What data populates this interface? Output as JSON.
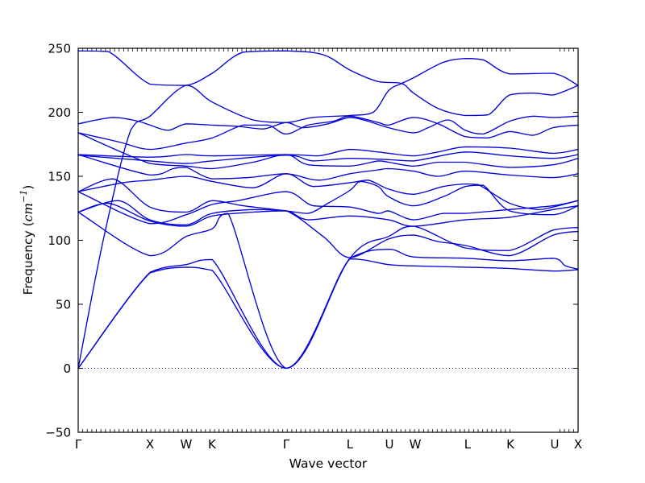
{
  "figure": {
    "background": "#ffffff",
    "line_color": "#0202dd",
    "spine_color": "#000000"
  },
  "chart_data": {
    "type": "line",
    "title": "",
    "xlabel": "Wave vector",
    "ylabel_text": "Frequency (cm^-1)",
    "ylabel_parts": {
      "prefix": "Frequency (",
      "math": "cm",
      "sup": "−1",
      "suffix": ")"
    },
    "ylim": [
      -50,
      250
    ],
    "grid": false,
    "legend": "none",
    "zero_line": {
      "value": 0,
      "style": "dotted",
      "color": "#0202dd"
    },
    "yticks": {
      "values": [
        250,
        200,
        150,
        100,
        50,
        0,
        -50
      ],
      "labels": [
        "250",
        "200",
        "150",
        "100",
        "50",
        "0",
        "−50"
      ]
    },
    "x_path": {
      "labels": [
        "Γ",
        "X",
        "W",
        "K",
        "Γ",
        "L",
        "U",
        "W",
        "L",
        "K",
        "U",
        "X"
      ],
      "positions": [
        0,
        0.1435,
        0.2161,
        0.2677,
        0.4161,
        0.5435,
        0.6226,
        0.6742,
        0.779,
        0.8645,
        0.9532,
        1.0
      ]
    },
    "minor_ticks": {
      "count": 110,
      "gap_fraction": [
        0.866,
        0.962
      ]
    },
    "series": [
      {
        "name": "band-01",
        "points": [
          [
            0,
            248
          ],
          [
            0.06,
            247.5
          ],
          [
            0.1435,
            222
          ],
          [
            0.216,
            221
          ],
          [
            0.268,
            230.5
          ],
          [
            0.33,
            247
          ],
          [
            0.4161,
            248
          ],
          [
            0.49,
            245
          ],
          [
            0.5435,
            233
          ],
          [
            0.6,
            224
          ],
          [
            0.647,
            222.5
          ],
          [
            0.671,
            215
          ],
          [
            0.72,
            203
          ],
          [
            0.7742,
            197.5
          ],
          [
            0.82,
            198
          ],
          [
            0.8629,
            213.5
          ],
          [
            0.91,
            215
          ],
          [
            0.95,
            213.5
          ],
          [
            1,
            221
          ]
        ]
      },
      {
        "name": "band-02",
        "points": [
          [
            0,
            0
          ],
          [
            0.05,
            100
          ],
          [
            0.105,
            186
          ],
          [
            0.1435,
            197
          ],
          [
            0.216,
            221
          ],
          [
            0.268,
            208
          ],
          [
            0.35,
            194
          ],
          [
            0.4161,
            192
          ],
          [
            0.47,
            196
          ],
          [
            0.5435,
            197.5
          ],
          [
            0.59,
            200
          ],
          [
            0.621,
            217
          ],
          [
            0.647,
            222.5
          ],
          [
            0.671,
            227
          ],
          [
            0.73,
            239
          ],
          [
            0.7742,
            242
          ],
          [
            0.81,
            241
          ],
          [
            0.8629,
            230
          ],
          [
            0.95,
            230.5
          ],
          [
            1,
            221
          ]
        ]
      },
      {
        "name": "band-03",
        "points": [
          [
            0,
            191
          ],
          [
            0.07,
            196
          ],
          [
            0.12,
            193
          ],
          [
            0.1435,
            190
          ],
          [
            0.18,
            186
          ],
          [
            0.216,
            191
          ],
          [
            0.268,
            190
          ],
          [
            0.32,
            189
          ],
          [
            0.37,
            187
          ],
          [
            0.4161,
            192
          ],
          [
            0.45,
            188
          ],
          [
            0.5,
            191
          ],
          [
            0.5435,
            196
          ],
          [
            0.58,
            193
          ],
          [
            0.621,
            188
          ],
          [
            0.671,
            184
          ],
          [
            0.7,
            188
          ],
          [
            0.74,
            194
          ],
          [
            0.7742,
            186
          ],
          [
            0.81,
            183
          ],
          [
            0.8629,
            193
          ],
          [
            0.91,
            197
          ],
          [
            0.95,
            196
          ],
          [
            1,
            197
          ]
        ]
      },
      {
        "name": "band-04",
        "points": [
          [
            0,
            184
          ],
          [
            0.08,
            177
          ],
          [
            0.1435,
            171
          ],
          [
            0.216,
            176
          ],
          [
            0.268,
            180
          ],
          [
            0.33,
            190
          ],
          [
            0.38,
            190
          ],
          [
            0.4161,
            183
          ],
          [
            0.46,
            190
          ],
          [
            0.51,
            193
          ],
          [
            0.5435,
            197
          ],
          [
            0.6,
            192
          ],
          [
            0.621,
            190
          ],
          [
            0.671,
            196
          ],
          [
            0.72,
            191
          ],
          [
            0.7742,
            181
          ],
          [
            0.82,
            180
          ],
          [
            0.8629,
            185
          ],
          [
            0.91,
            182
          ],
          [
            0.95,
            188
          ],
          [
            1,
            190
          ]
        ]
      },
      {
        "name": "band-05",
        "points": [
          [
            0,
            167
          ],
          [
            0.1435,
            165
          ],
          [
            0.216,
            167
          ],
          [
            0.268,
            166
          ],
          [
            0.4161,
            167
          ],
          [
            0.48,
            166
          ],
          [
            0.5435,
            171
          ],
          [
            0.6,
            169
          ],
          [
            0.621,
            168
          ],
          [
            0.671,
            166
          ],
          [
            0.72,
            169
          ],
          [
            0.7742,
            173
          ],
          [
            0.8629,
            172
          ],
          [
            0.95,
            168
          ],
          [
            1,
            171
          ]
        ]
      },
      {
        "name": "band-06",
        "points": [
          [
            0,
            166.5
          ],
          [
            0.1435,
            162
          ],
          [
            0.216,
            160
          ],
          [
            0.268,
            162
          ],
          [
            0.4161,
            166.5
          ],
          [
            0.47,
            162
          ],
          [
            0.5435,
            164
          ],
          [
            0.621,
            163
          ],
          [
            0.671,
            162
          ],
          [
            0.7742,
            169
          ],
          [
            0.8629,
            166
          ],
          [
            0.95,
            164
          ],
          [
            1,
            167
          ]
        ]
      },
      {
        "name": "band-07",
        "points": [
          [
            0,
            184
          ],
          [
            0.1435,
            160
          ],
          [
            0.216,
            158
          ],
          [
            0.268,
            156
          ],
          [
            0.35,
            161
          ],
          [
            0.4161,
            167
          ],
          [
            0.46,
            159
          ],
          [
            0.5435,
            158
          ],
          [
            0.6,
            162
          ],
          [
            0.621,
            161
          ],
          [
            0.671,
            158
          ],
          [
            0.72,
            161
          ],
          [
            0.7742,
            161
          ],
          [
            0.8629,
            157
          ],
          [
            0.95,
            159
          ],
          [
            1,
            164
          ]
        ]
      },
      {
        "name": "band-08",
        "points": [
          [
            0,
            167
          ],
          [
            0.1435,
            151
          ],
          [
            0.19,
            156
          ],
          [
            0.216,
            157
          ],
          [
            0.268,
            148
          ],
          [
            0.34,
            149
          ],
          [
            0.4161,
            152
          ],
          [
            0.48,
            147
          ],
          [
            0.5435,
            152
          ],
          [
            0.6,
            155
          ],
          [
            0.621,
            156
          ],
          [
            0.671,
            154
          ],
          [
            0.72,
            150
          ],
          [
            0.7742,
            154
          ],
          [
            0.8629,
            151
          ],
          [
            0.95,
            149
          ],
          [
            1,
            152
          ]
        ]
      },
      {
        "name": "band-09",
        "points": [
          [
            0,
            138
          ],
          [
            0.09,
            145
          ],
          [
            0.1435,
            147
          ],
          [
            0.216,
            150
          ],
          [
            0.268,
            146
          ],
          [
            0.35,
            141
          ],
          [
            0.4161,
            152
          ],
          [
            0.47,
            142
          ],
          [
            0.5435,
            145
          ],
          [
            0.58,
            147
          ],
          [
            0.621,
            140
          ],
          [
            0.671,
            136
          ],
          [
            0.73,
            142
          ],
          [
            0.7742,
            144
          ],
          [
            0.8,
            143.5
          ],
          [
            0.8629,
            129
          ],
          [
            0.92,
            124
          ],
          [
            0.95,
            126
          ],
          [
            1,
            131
          ]
        ]
      },
      {
        "name": "band-10",
        "points": [
          [
            0,
            138
          ],
          [
            0.07,
            148
          ],
          [
            0.1435,
            126
          ],
          [
            0.216,
            122
          ],
          [
            0.268,
            131
          ],
          [
            0.33,
            127
          ],
          [
            0.4161,
            123
          ],
          [
            0.46,
            121
          ],
          [
            0.5,
            129
          ],
          [
            0.5435,
            139
          ],
          [
            0.565,
            146
          ],
          [
            0.6,
            142
          ],
          [
            0.621,
            134
          ],
          [
            0.671,
            127
          ],
          [
            0.73,
            134
          ],
          [
            0.7742,
            142
          ],
          [
            0.81,
            143
          ],
          [
            0.8629,
            123
          ],
          [
            0.95,
            120
          ],
          [
            1,
            127
          ]
        ]
      },
      {
        "name": "band-11",
        "points": [
          [
            0,
            138
          ],
          [
            0.1435,
            113
          ],
          [
            0.216,
            120
          ],
          [
            0.268,
            128
          ],
          [
            0.32,
            131
          ],
          [
            0.4161,
            138
          ],
          [
            0.47,
            127
          ],
          [
            0.5435,
            126
          ],
          [
            0.6,
            121
          ],
          [
            0.621,
            123
          ],
          [
            0.671,
            116
          ],
          [
            0.73,
            121
          ],
          [
            0.7742,
            121
          ],
          [
            0.8629,
            124
          ],
          [
            0.95,
            127
          ],
          [
            1,
            131
          ]
        ]
      },
      {
        "name": "band-12",
        "points": [
          [
            0,
            122
          ],
          [
            0.06,
            129
          ],
          [
            0.1435,
            115
          ],
          [
            0.216,
            111
          ],
          [
            0.268,
            119
          ],
          [
            0.35,
            122
          ],
          [
            0.4161,
            123
          ],
          [
            0.46,
            116
          ],
          [
            0.5435,
            119
          ],
          [
            0.621,
            116
          ],
          [
            0.671,
            111
          ],
          [
            0.7742,
            116
          ],
          [
            0.8629,
            118
          ],
          [
            0.95,
            124
          ],
          [
            1,
            127
          ]
        ]
      },
      {
        "name": "band-13",
        "points": [
          [
            0,
            122
          ],
          [
            0.1435,
            88
          ],
          [
            0.216,
            103
          ],
          [
            0.268,
            109
          ],
          [
            0.3,
            121
          ],
          [
            0.4161,
            0
          ],
          [
            0.5435,
            86
          ],
          [
            0.621,
            103
          ],
          [
            0.671,
            111
          ],
          [
            0.7742,
            94
          ],
          [
            0.8629,
            92
          ],
          [
            0.95,
            108
          ],
          [
            1,
            110
          ]
        ]
      },
      {
        "name": "band-14",
        "points": [
          [
            0,
            122
          ],
          [
            0.08,
            131
          ],
          [
            0.1435,
            116
          ],
          [
            0.216,
            112
          ],
          [
            0.268,
            121
          ],
          [
            0.35,
            124
          ],
          [
            0.4161,
            123
          ],
          [
            0.49,
            103
          ],
          [
            0.5435,
            86.5
          ],
          [
            0.621,
            101
          ],
          [
            0.671,
            104
          ],
          [
            0.72,
            99
          ],
          [
            0.7742,
            96
          ],
          [
            0.8629,
            88
          ],
          [
            0.95,
            104
          ],
          [
            1,
            107
          ]
        ]
      },
      {
        "name": "band-15",
        "points": [
          [
            0,
            0
          ],
          [
            0.1435,
            75
          ],
          [
            0.216,
            81
          ],
          [
            0.268,
            85
          ],
          [
            0.4161,
            0
          ],
          [
            0.5435,
            86
          ],
          [
            0.621,
            93
          ],
          [
            0.671,
            87
          ],
          [
            0.7742,
            86
          ],
          [
            0.8629,
            84
          ],
          [
            0.95,
            86
          ],
          [
            0.975,
            80
          ],
          [
            1,
            77.5
          ]
        ]
      },
      {
        "name": "band-16",
        "points": [
          [
            0,
            0
          ],
          [
            0.1435,
            74.5
          ],
          [
            0.216,
            79
          ],
          [
            0.268,
            76.5
          ],
          [
            0.4161,
            0
          ],
          [
            0.5435,
            85.5
          ],
          [
            0.621,
            81
          ],
          [
            0.671,
            80
          ],
          [
            0.7742,
            79
          ],
          [
            0.8629,
            78
          ],
          [
            0.95,
            76
          ],
          [
            1,
            77
          ]
        ]
      }
    ]
  }
}
